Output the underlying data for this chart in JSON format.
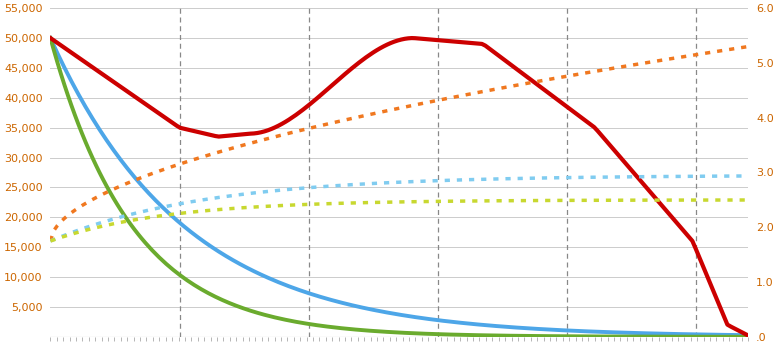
{
  "left_ylim": [
    0,
    55000
  ],
  "right_ylim": [
    0,
    6.0
  ],
  "left_yticks": [
    0,
    5000,
    10000,
    15000,
    20000,
    25000,
    30000,
    35000,
    40000,
    45000,
    50000,
    55000
  ],
  "right_yticks": [
    0.0,
    1.0,
    2.0,
    3.0,
    4.0,
    5.0,
    6.0
  ],
  "left_yticklabels": [
    "",
    "5,000",
    "10,000",
    "15,000",
    "20,000",
    "25,000",
    "30,000",
    "35,000",
    "40,000",
    "45,000",
    "50,000",
    "55,000"
  ],
  "right_yticklabels": [
    ".0",
    "1.0",
    "2.0",
    "3.0",
    "4.0",
    "5.0",
    "6.0"
  ],
  "vlines_x": [
    0.185,
    0.37,
    0.555,
    0.74,
    0.925
  ],
  "blue_solid_color": "#4da6e8",
  "green_solid_color": "#6aab2e",
  "red_solid_color": "#cc0000",
  "orange_dotted_color": "#f07820",
  "lightblue_dotted_color": "#80ccf0",
  "yellowgreen_dotted_color": "#c8d830",
  "tick_color": "#cc6600",
  "grid_color": "#cccccc",
  "vline_color": "#888888",
  "bg_color": "#ffffff",
  "figsize": [
    7.78,
    3.47
  ],
  "dpi": 100
}
